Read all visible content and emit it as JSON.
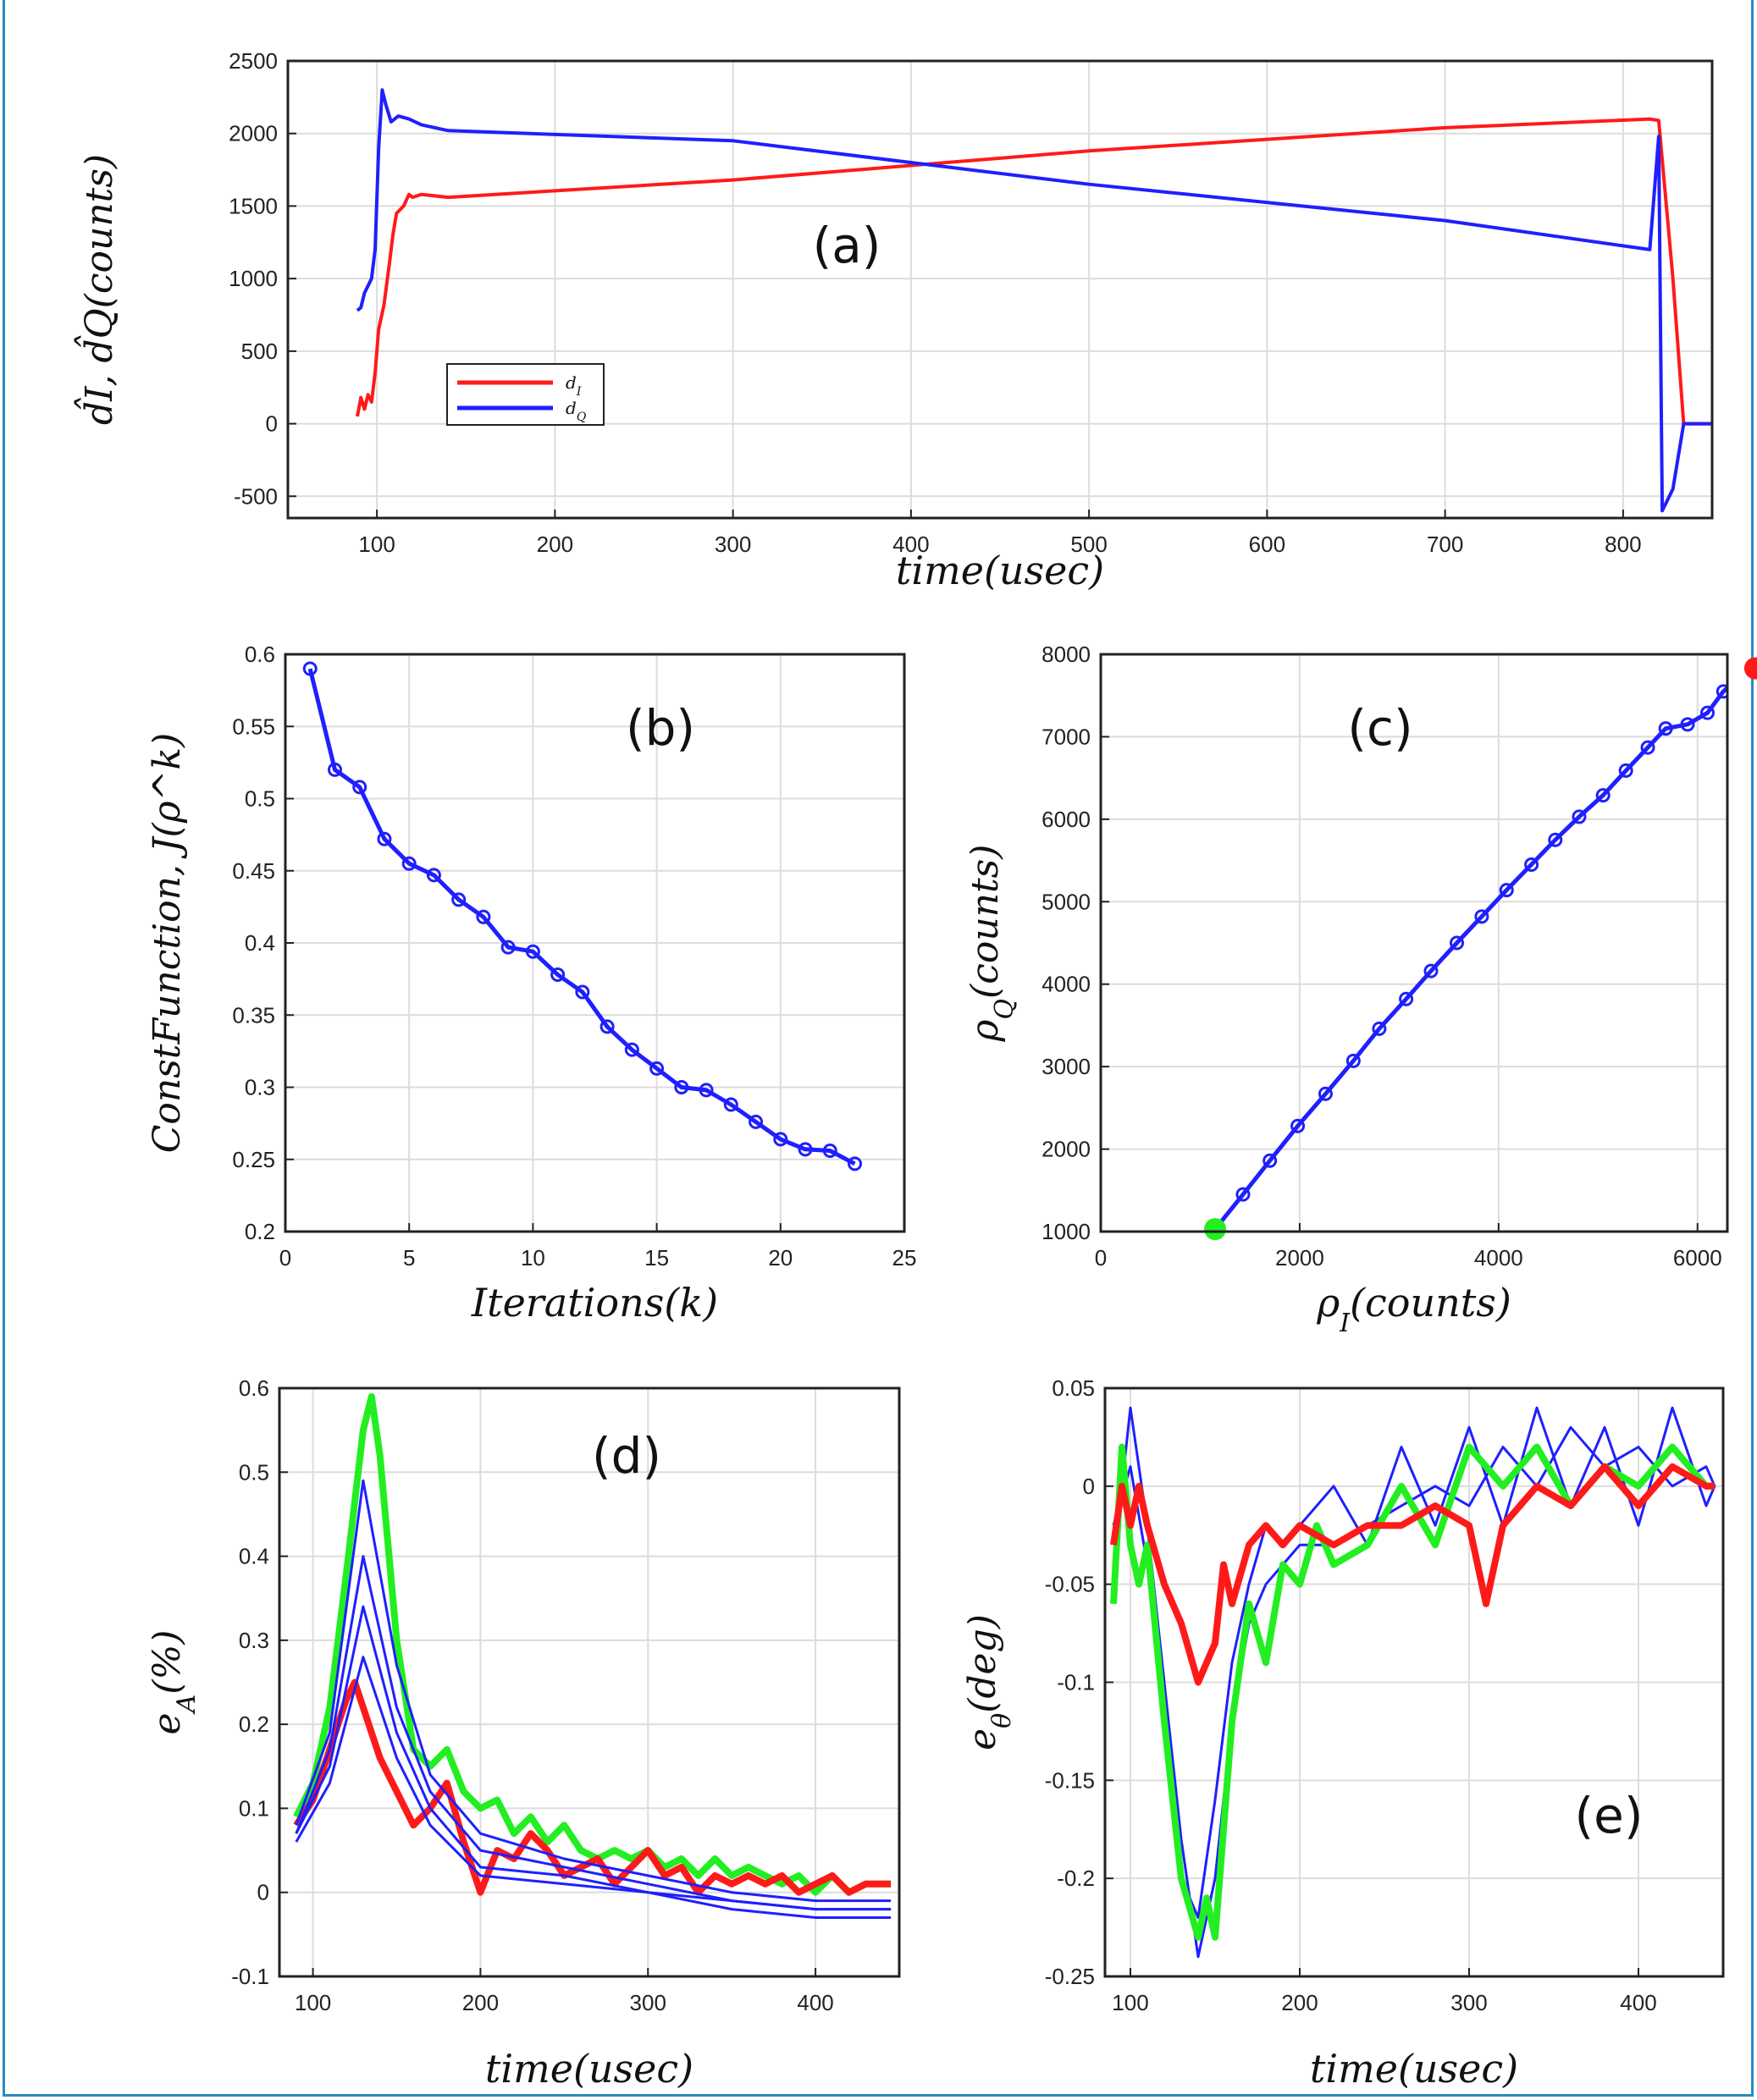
{
  "colors": {
    "red": "#ff1a1a",
    "blue": "#1f1fff",
    "green": "#22ee22",
    "grid": "#dcdcdc",
    "axis": "#222222"
  },
  "chart_data": [
    {
      "id": "a",
      "type": "line",
      "panel_label": "(a)",
      "xlabel": "time(usec)",
      "ylabel": "d̂_I, d̂_Q(counts)",
      "xlim": [
        50,
        850
      ],
      "ylim": [
        -650,
        2500
      ],
      "xticks": [
        100,
        200,
        300,
        400,
        500,
        600,
        700,
        800
      ],
      "yticks": [
        -500,
        0,
        500,
        1000,
        1500,
        2000,
        2500
      ],
      "grid": true,
      "legend_position": "lower-left",
      "series": [
        {
          "name": "d_I",
          "color": "red",
          "points": [
            [
              89,
              50
            ],
            [
              91,
              180
            ],
            [
              93,
              100
            ],
            [
              95,
              200
            ],
            [
              97,
              150
            ],
            [
              99,
              350
            ],
            [
              101,
              650
            ],
            [
              104,
              820
            ],
            [
              107,
              1100
            ],
            [
              109,
              1300
            ],
            [
              111,
              1450
            ],
            [
              115,
              1500
            ],
            [
              118,
              1580
            ],
            [
              120,
              1560
            ],
            [
              125,
              1580
            ],
            [
              140,
              1560
            ],
            [
              300,
              1680
            ],
            [
              500,
              1880
            ],
            [
              700,
              2040
            ],
            [
              815,
              2100
            ],
            [
              820,
              2090
            ],
            [
              828,
              1000
            ],
            [
              834,
              0
            ],
            [
              850,
              0
            ]
          ]
        },
        {
          "name": "d_Q",
          "color": "blue",
          "points": [
            [
              89,
              780
            ],
            [
              91,
              800
            ],
            [
              93,
              900
            ],
            [
              95,
              950
            ],
            [
              97,
              1000
            ],
            [
              99,
              1200
            ],
            [
              101,
              1900
            ],
            [
              103,
              2300
            ],
            [
              105,
              2200
            ],
            [
              108,
              2080
            ],
            [
              112,
              2120
            ],
            [
              118,
              2100
            ],
            [
              125,
              2060
            ],
            [
              140,
              2020
            ],
            [
              300,
              1950
            ],
            [
              500,
              1650
            ],
            [
              700,
              1400
            ],
            [
              815,
              1200
            ],
            [
              820,
              1980
            ],
            [
              822,
              -600
            ],
            [
              828,
              -450
            ],
            [
              834,
              0
            ],
            [
              850,
              0
            ]
          ]
        }
      ]
    },
    {
      "id": "b",
      "type": "line",
      "panel_label": "(b)",
      "xlabel": "Iterations(k)",
      "ylabel": "ConstFunction, J(ρ^k)",
      "xlim": [
        0,
        25
      ],
      "ylim": [
        0.2,
        0.6
      ],
      "xticks": [
        0,
        5,
        10,
        15,
        20,
        25
      ],
      "yticks": [
        0.2,
        0.25,
        0.3,
        0.35,
        0.4,
        0.45,
        0.5,
        0.55,
        0.6
      ],
      "grid": true,
      "series": [
        {
          "color": "blue",
          "x": [
            1,
            2,
            3,
            4,
            5,
            6,
            7,
            8,
            9,
            10,
            11,
            12,
            13,
            14,
            15,
            16,
            17,
            18,
            19,
            20,
            21,
            22,
            23
          ],
          "y": [
            0.59,
            0.52,
            0.508,
            0.472,
            0.455,
            0.447,
            0.43,
            0.418,
            0.397,
            0.394,
            0.378,
            0.366,
            0.342,
            0.326,
            0.313,
            0.3,
            0.298,
            0.288,
            0.276,
            0.264,
            0.257,
            0.256,
            0.247
          ]
        }
      ]
    },
    {
      "id": "c",
      "type": "scatter",
      "panel_label": "(c)",
      "xlabel": "ρ_I(counts)",
      "ylabel": "ρ_Q(counts)",
      "xlim": [
        0,
        6300
      ],
      "ylim": [
        1000,
        8000
      ],
      "xticks": [
        0,
        2000,
        4000,
        6000
      ],
      "yticks": [
        1000,
        2000,
        3000,
        4000,
        5000,
        6000,
        7000,
        8000
      ],
      "grid": true,
      "series": [
        {
          "color": "blue",
          "points": [
            [
              1150,
              1030
            ],
            [
              1430,
              1450
            ],
            [
              1700,
              1860
            ],
            [
              1980,
              2280
            ],
            [
              2260,
              2670
            ],
            [
              2540,
              3070
            ],
            [
              2800,
              3460
            ],
            [
              3070,
              3820
            ],
            [
              3320,
              4160
            ],
            [
              3580,
              4500
            ],
            [
              3830,
              4820
            ],
            [
              4080,
              5140
            ],
            [
              4330,
              5450
            ],
            [
              4570,
              5750
            ],
            [
              4810,
              6030
            ],
            [
              5050,
              6290
            ],
            [
              5280,
              6590
            ],
            [
              5500,
              6870
            ],
            [
              5680,
              7100
            ],
            [
              5900,
              7150
            ],
            [
              6100,
              7290
            ],
            [
              6260,
              7550
            ],
            [
              6360,
              7650
            ]
          ]
        }
      ],
      "markers": [
        {
          "label": "start",
          "color": "green",
          "point": [
            1150,
            1030
          ]
        },
        {
          "label": "end",
          "color": "red",
          "point": [
            6580,
            7830
          ]
        }
      ]
    },
    {
      "id": "d",
      "type": "line",
      "panel_label": "(d)",
      "xlabel": "time(usec)",
      "ylabel": "e_A(%)",
      "xlim": [
        80,
        450
      ],
      "ylim": [
        -0.1,
        0.6
      ],
      "xticks": [
        100,
        200,
        300,
        400
      ],
      "yticks": [
        -0.1,
        0,
        0.1,
        0.2,
        0.3,
        0.4,
        0.5,
        0.6
      ],
      "grid": true,
      "series": [
        {
          "color": "green",
          "x": [
            90,
            100,
            110,
            120,
            130,
            135,
            140,
            150,
            160,
            170,
            180,
            190,
            200,
            210,
            220,
            230,
            240,
            250,
            260,
            270,
            280,
            290,
            300,
            310,
            320,
            330,
            340,
            350,
            360,
            370,
            380,
            390,
            400,
            410,
            420,
            430,
            440,
            445
          ],
          "y": [
            0.09,
            0.13,
            0.22,
            0.38,
            0.55,
            0.59,
            0.52,
            0.3,
            0.17,
            0.15,
            0.17,
            0.12,
            0.1,
            0.11,
            0.07,
            0.09,
            0.06,
            0.08,
            0.05,
            0.04,
            0.05,
            0.04,
            0.05,
            0.03,
            0.04,
            0.02,
            0.04,
            0.02,
            0.03,
            0.02,
            0.01,
            0.02,
            0.0,
            0.02,
            0.0,
            0.01,
            0.01,
            0.01
          ]
        },
        {
          "color": "red",
          "x": [
            90,
            100,
            110,
            120,
            125,
            130,
            140,
            150,
            160,
            170,
            180,
            190,
            200,
            210,
            220,
            230,
            240,
            250,
            260,
            270,
            280,
            290,
            300,
            310,
            320,
            330,
            340,
            350,
            360,
            370,
            380,
            390,
            400,
            410,
            420,
            430,
            440,
            445
          ],
          "y": [
            0.08,
            0.11,
            0.17,
            0.23,
            0.25,
            0.22,
            0.16,
            0.12,
            0.08,
            0.1,
            0.13,
            0.06,
            0.0,
            0.05,
            0.04,
            0.07,
            0.05,
            0.02,
            0.03,
            0.04,
            0.01,
            0.03,
            0.05,
            0.02,
            0.03,
            0.0,
            0.02,
            0.01,
            0.02,
            0.01,
            0.02,
            0.0,
            0.01,
            0.02,
            0.0,
            0.01,
            0.01,
            0.01
          ]
        },
        {
          "color": "blue",
          "x": [
            90,
            110,
            130,
            150,
            170,
            200,
            250,
            300,
            350,
            400,
            445
          ],
          "y": [
            0.07,
            0.17,
            0.4,
            0.22,
            0.12,
            0.05,
            0.03,
            0.01,
            -0.01,
            -0.02,
            -0.02
          ]
        },
        {
          "color": "blue",
          "x": [
            90,
            110,
            130,
            150,
            170,
            200,
            250,
            300,
            350,
            400,
            445
          ],
          "y": [
            0.06,
            0.13,
            0.28,
            0.16,
            0.08,
            0.02,
            0.01,
            0.0,
            -0.02,
            -0.03,
            -0.03
          ]
        },
        {
          "color": "blue",
          "x": [
            90,
            110,
            130,
            150,
            170,
            200,
            250,
            300,
            350,
            400,
            445
          ],
          "y": [
            0.08,
            0.19,
            0.49,
            0.27,
            0.14,
            0.07,
            0.04,
            0.02,
            0.0,
            -0.01,
            -0.01
          ]
        },
        {
          "color": "blue",
          "x": [
            90,
            110,
            130,
            150,
            170,
            200,
            250,
            300,
            350,
            400,
            445
          ],
          "y": [
            0.07,
            0.15,
            0.34,
            0.19,
            0.1,
            0.03,
            0.02,
            0.0,
            -0.01,
            -0.02,
            -0.02
          ]
        }
      ]
    },
    {
      "id": "e",
      "type": "line",
      "panel_label": "(e)",
      "xlabel": "time(usec)",
      "ylabel": "e_θ(deg)",
      "xlim": [
        85,
        450
      ],
      "ylim": [
        -0.25,
        0.05
      ],
      "xticks": [
        100,
        200,
        300,
        400
      ],
      "yticks": [
        -0.25,
        -0.2,
        -0.15,
        -0.1,
        -0.05,
        0,
        0.05
      ],
      "grid": true,
      "series": [
        {
          "color": "blue",
          "x": [
            90,
            100,
            110,
            120,
            130,
            140,
            150,
            160,
            170,
            180,
            190,
            200,
            220,
            240,
            260,
            280,
            300,
            320,
            340,
            360,
            380,
            400,
            420,
            440,
            445
          ],
          "y": [
            -0.04,
            0.04,
            -0.02,
            -0.1,
            -0.18,
            -0.24,
            -0.2,
            -0.12,
            -0.07,
            -0.05,
            -0.04,
            -0.03,
            -0.03,
            -0.02,
            -0.01,
            0.0,
            -0.01,
            0.02,
            0.0,
            0.03,
            0.01,
            0.02,
            0.0,
            0.01,
            0.0
          ]
        },
        {
          "color": "blue",
          "x": [
            90,
            100,
            110,
            120,
            130,
            140,
            150,
            160,
            170,
            180,
            190,
            200,
            220,
            240,
            260,
            280,
            300,
            320,
            340,
            360,
            380,
            400,
            420,
            440,
            445
          ],
          "y": [
            -0.02,
            0.01,
            -0.04,
            -0.12,
            -0.2,
            -0.22,
            -0.16,
            -0.09,
            -0.05,
            -0.02,
            -0.03,
            -0.02,
            0.0,
            -0.03,
            0.02,
            -0.02,
            0.03,
            -0.02,
            0.04,
            -0.01,
            0.03,
            -0.02,
            0.04,
            -0.01,
            0.0
          ]
        },
        {
          "color": "green",
          "x": [
            90,
            95,
            100,
            105,
            110,
            120,
            130,
            140,
            145,
            150,
            160,
            170,
            180,
            190,
            200,
            210,
            220,
            240,
            260,
            280,
            300,
            320,
            340,
            360,
            380,
            400,
            420,
            440,
            445
          ],
          "y": [
            -0.06,
            0.02,
            -0.03,
            -0.05,
            -0.03,
            -0.12,
            -0.2,
            -0.23,
            -0.21,
            -0.23,
            -0.12,
            -0.06,
            -0.09,
            -0.04,
            -0.05,
            -0.02,
            -0.04,
            -0.03,
            0.0,
            -0.03,
            0.02,
            0.0,
            0.02,
            -0.01,
            0.01,
            0.0,
            0.02,
            0.0,
            0.0
          ]
        },
        {
          "color": "red",
          "x": [
            90,
            95,
            100,
            105,
            110,
            120,
            130,
            140,
            150,
            155,
            160,
            170,
            180,
            190,
            200,
            220,
            240,
            260,
            280,
            300,
            310,
            320,
            340,
            360,
            380,
            400,
            420,
            440,
            445
          ],
          "y": [
            -0.03,
            0.0,
            -0.02,
            0.0,
            -0.02,
            -0.05,
            -0.07,
            -0.1,
            -0.08,
            -0.04,
            -0.06,
            -0.03,
            -0.02,
            -0.03,
            -0.02,
            -0.03,
            -0.02,
            -0.02,
            -0.01,
            -0.02,
            -0.06,
            -0.02,
            0.0,
            -0.01,
            0.01,
            -0.01,
            0.01,
            0.0,
            0.0
          ]
        }
      ]
    }
  ]
}
